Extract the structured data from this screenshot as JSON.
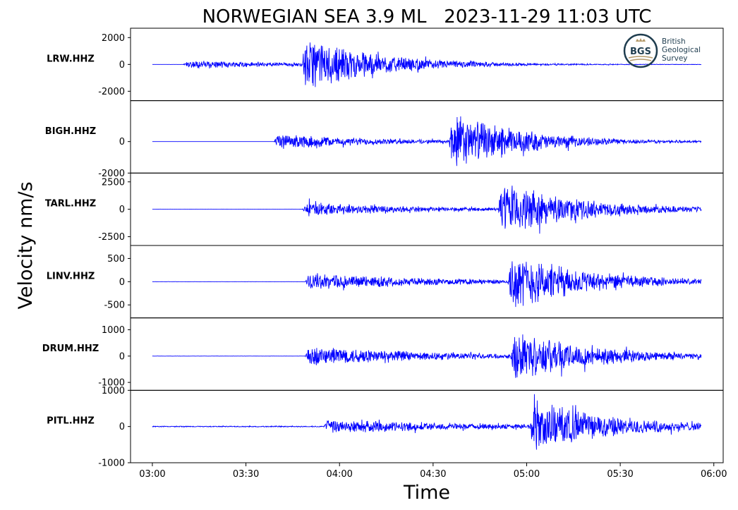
{
  "chart_data": {
    "type": "line",
    "title": "NORWEGIAN SEA 3.9 ML   2023-11-29 11:03 UTC",
    "xlabel": "Time",
    "ylabel": "Velocity nm/s",
    "x_range": [
      "02:53",
      "06:03"
    ],
    "x_ticks": [
      "03:00",
      "03:30",
      "04:00",
      "04:30",
      "05:00",
      "05:30",
      "06:00"
    ],
    "trace_start": "03:00",
    "trace_end": "05:56",
    "grid": false,
    "line_color": "#0000ff",
    "panels": [
      {
        "station": "LRW.HHZ",
        "ylim": [
          -2700,
          2700
        ],
        "yticks": [
          2000,
          0,
          -2000
        ],
        "ytick_labels": [
          "2000",
          "0",
          "-2000"
        ],
        "noise": 2,
        "phases": [
          {
            "time": "03:10",
            "amp": 350,
            "decay": 40
          },
          {
            "time": "03:48",
            "amp": 2300,
            "decay": 22
          }
        ]
      },
      {
        "station": "BIGH.HHZ",
        "ylim": [
          -2000,
          2600
        ],
        "yticks": [
          0,
          -2000
        ],
        "ytick_labels": [
          "0",
          "-2000"
        ],
        "noise": 2,
        "phases": [
          {
            "time": "03:39",
            "amp": 550,
            "decay": 35
          },
          {
            "time": "04:35",
            "amp": 2100,
            "decay": 22
          }
        ]
      },
      {
        "station": "TARL.HHZ",
        "ylim": [
          -3300,
          3300
        ],
        "yticks": [
          2500,
          0,
          -2500
        ],
        "ytick_labels": [
          "2500",
          "0",
          "-2500"
        ],
        "noise": 3,
        "phases": [
          {
            "time": "03:48",
            "amp": 700,
            "decay": 40
          },
          {
            "time": "04:51",
            "amp": 2800,
            "decay": 24
          }
        ]
      },
      {
        "station": "LINV.HHZ",
        "ylim": [
          -780,
          780
        ],
        "yticks": [
          500,
          0,
          -500
        ],
        "ytick_labels": [
          "500",
          "0",
          "-500"
        ],
        "noise": 2,
        "phases": [
          {
            "time": "03:49",
            "amp": 200,
            "decay": 45
          },
          {
            "time": "04:54",
            "amp": 650,
            "decay": 24
          }
        ]
      },
      {
        "station": "DRUM.HHZ",
        "ylim": [
          -1300,
          1450
        ],
        "yticks": [
          1000,
          0,
          -1000
        ],
        "ytick_labels": [
          "1000",
          "0",
          "-1000"
        ],
        "noise": 3,
        "phases": [
          {
            "time": "03:49",
            "amp": 450,
            "decay": 40
          },
          {
            "time": "04:55",
            "amp": 1050,
            "decay": 24
          }
        ]
      },
      {
        "station": "PITL.HHZ",
        "ylim": [
          -1000,
          1000
        ],
        "yticks": [
          1000,
          0,
          -1000
        ],
        "ytick_labels": [
          "1000",
          "0",
          "-1000"
        ],
        "noise": 15,
        "phases": [
          {
            "time": "03:55",
            "amp": 220,
            "decay": 45
          },
          {
            "time": "05:01",
            "amp": 800,
            "decay": 24
          }
        ]
      }
    ]
  },
  "logo": {
    "abbr": "BGS",
    "lines": [
      "British",
      "Geological",
      "Survey"
    ],
    "color": "#1f3d4f",
    "accent": "#b59a6a"
  }
}
